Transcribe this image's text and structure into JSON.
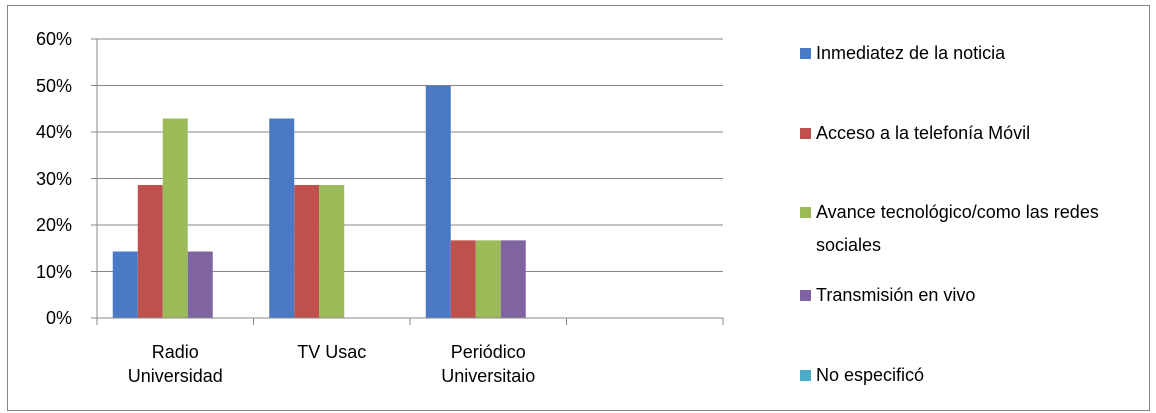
{
  "chart_data": {
    "type": "bar",
    "categories": [
      "Radio Universidad",
      "TV Usac",
      "Periódico Universitaio",
      null
    ],
    "series": [
      {
        "name": "Inmediatez de la noticia",
        "color": "#4a7ac6",
        "values": [
          14.3,
          42.9,
          50,
          null
        ]
      },
      {
        "name": "Acceso a la telefonía Móvil",
        "color": "#c0504d",
        "values": [
          28.6,
          28.6,
          16.7,
          null
        ]
      },
      {
        "name": "Avance tecnológico/como las redes sociales",
        "color": "#9bbb59",
        "values": [
          42.9,
          28.6,
          16.7,
          null
        ]
      },
      {
        "name": "Transmisión en vivo",
        "color": "#8064a2",
        "values": [
          14.3,
          0,
          16.7,
          null
        ]
      },
      {
        "name": "No especificó",
        "color": "#4bacc6",
        "values": [
          0,
          0,
          0,
          null
        ]
      }
    ],
    "ylim": [
      0,
      60
    ],
    "yticks": [
      {
        "value": 0,
        "label": "0%"
      },
      {
        "value": 10,
        "label": "10%"
      },
      {
        "value": 20,
        "label": "20%"
      },
      {
        "value": 30,
        "label": "30%"
      },
      {
        "value": 40,
        "label": "40%"
      },
      {
        "value": 50,
        "label": "50%"
      },
      {
        "value": 60,
        "label": "60%"
      }
    ],
    "grid": true,
    "legend": "right"
  }
}
